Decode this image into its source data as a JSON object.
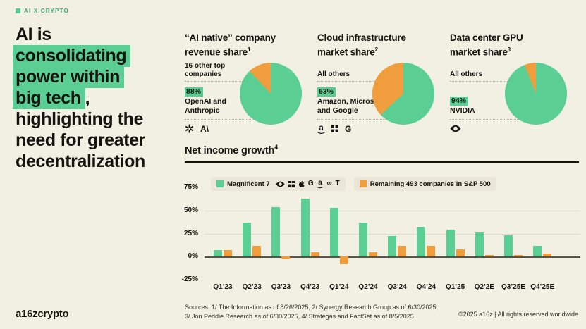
{
  "colors": {
    "background": "#F2EFE3",
    "green": "#5BCE93",
    "orange": "#F09D3D",
    "text": "#15140E",
    "tag_text": "#3FA572",
    "muted_line": "#A9A698",
    "grid": "#DCD9CB",
    "zero_line": "#55534A",
    "pill_bg": "#EAE7D8",
    "source_text": "#31302A"
  },
  "tag": {
    "label": "AI X CRYPTO"
  },
  "headline": {
    "line1": "AI is",
    "hl1": "consolidating",
    "hl2": "power within",
    "hl3": "big tech",
    "after_hl3": ",",
    "line5": "highlighting the",
    "line6": "need for greater",
    "line7": "decentralization"
  },
  "pies": [
    {
      "title_l1": "“AI native” company",
      "title_l2": "revenue share",
      "sup": "1",
      "other_label": "16 other top\ncompanies",
      "pct": "88%",
      "winner": "OpenAI and\nAnthropic",
      "icons": [
        "openai-icon",
        "anthropic-icon"
      ]
    },
    {
      "title_l1": "Cloud infrastructure",
      "title_l2": "market share",
      "sup": "2",
      "other_label": "All others",
      "pct": "63%",
      "winner": "Amazon, Microsoft,\nand Google",
      "icons": [
        "amazon-icon",
        "microsoft-icon",
        "google-icon"
      ]
    },
    {
      "title_l1": "Data center GPU",
      "title_l2": "market share",
      "sup": "3",
      "other_label": "All others",
      "pct": "94%",
      "winner": "NVIDIA",
      "icons": [
        "nvidia-icon"
      ]
    }
  ],
  "bar_section": {
    "title": "Net income growth",
    "sup": "4",
    "legend": [
      {
        "label": "Magnificent 7",
        "color_key": "green",
        "icons": [
          "nvidia-icon",
          "microsoft-icon",
          "apple-icon",
          "google-icon",
          "amazon-icon",
          "meta-icon",
          "tesla-icon"
        ]
      },
      {
        "label": "Remaining 493 companies in S&P 500",
        "color_key": "orange",
        "icons": []
      }
    ]
  },
  "chart_data": [
    {
      "type": "pie",
      "title": "“AI native” company revenue share",
      "slices": [
        {
          "label": "OpenAI and Anthropic",
          "value": 88,
          "color": "green"
        },
        {
          "label": "16 other top companies",
          "value": 12,
          "color": "orange"
        }
      ]
    },
    {
      "type": "pie",
      "title": "Cloud infrastructure market share",
      "slices": [
        {
          "label": "Amazon, Microsoft, and Google",
          "value": 63,
          "color": "green"
        },
        {
          "label": "All others",
          "value": 37,
          "color": "orange"
        }
      ]
    },
    {
      "type": "pie",
      "title": "Data center GPU market share",
      "slices": [
        {
          "label": "NVIDIA",
          "value": 94,
          "color": "green"
        },
        {
          "label": "All others",
          "value": 6,
          "color": "orange"
        }
      ]
    },
    {
      "type": "bar",
      "title": "Net income growth",
      "categories": [
        "Q1’23",
        "Q2’23",
        "Q3’23",
        "Q4’23",
        "Q1’24",
        "Q2’24",
        "Q3’24",
        "Q4’24",
        "Q1’25",
        "Q2’2E",
        "Q3’25E",
        "Q4’25E"
      ],
      "series": [
        {
          "name": "Magnificent 7",
          "color": "green",
          "values": [
            7,
            37,
            54,
            63,
            53,
            37,
            22,
            32,
            29,
            26,
            23,
            12
          ]
        },
        {
          "name": "Remaining 493 companies in S&P 500",
          "color": "orange",
          "values": [
            7,
            12,
            -3,
            5,
            -8,
            5,
            12,
            12,
            8,
            2,
            2,
            3
          ]
        }
      ],
      "ylim": [
        -25,
        75
      ],
      "yticks": [
        75,
        50,
        25,
        0,
        -25
      ],
      "ytick_labels": [
        "75%",
        "50%",
        "25%",
        "0%",
        "-25%"
      ],
      "gridlines": [
        50,
        25
      ],
      "legend_position": "top",
      "grid": true
    }
  ],
  "footer": {
    "logo": "a16zcrypto",
    "sources_line1": "Sources: 1/ The Information as of 8/26/2025, 2/ Synergy Research Group as of 6/30/2025,",
    "sources_line2": "3/ Jon Peddie Research as of 6/30/2025, 4/ Strategas and FactSet as of 8/5/2025",
    "copyright": "©2025 a16z | All rights reserved worldwide"
  }
}
